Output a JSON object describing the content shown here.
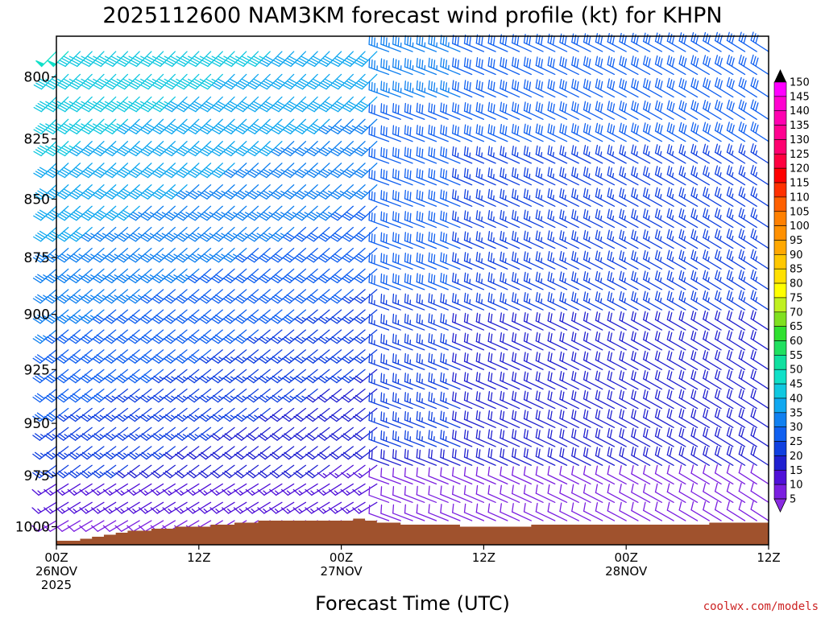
{
  "chart_data": {
    "type": "wind-barb-time-height",
    "title": "2025112600 NAM3KM forecast wind profile (kt) for KHPN",
    "xlabel": "Forecast Time (UTC)",
    "credit": "coolwx.com/models",
    "x_ticks": [
      {
        "hour": 0,
        "lines": [
          "00Z",
          "26NOV",
          "2025"
        ]
      },
      {
        "hour": 12,
        "lines": [
          "12Z"
        ]
      },
      {
        "hour": 24,
        "lines": [
          "00Z",
          "27NOV"
        ]
      },
      {
        "hour": 36,
        "lines": [
          "12Z"
        ]
      },
      {
        "hour": 48,
        "lines": [
          "00Z",
          "28NOV"
        ]
      },
      {
        "hour": 60,
        "lines": [
          "12Z"
        ]
      }
    ],
    "xlim": [
      0,
      60
    ],
    "y_ticks": [
      800,
      825,
      850,
      875,
      900,
      925,
      950,
      975,
      1000
    ],
    "ylim_hpa": [
      1009,
      784
    ],
    "colorbar": {
      "ticks": [
        5,
        10,
        15,
        20,
        25,
        30,
        35,
        40,
        45,
        50,
        55,
        60,
        65,
        70,
        75,
        80,
        85,
        90,
        95,
        100,
        105,
        110,
        115,
        120,
        125,
        130,
        135,
        140,
        145,
        150
      ],
      "colors": [
        "#8a2be2",
        "#7b1fe0",
        "#5010d8",
        "#2020d0",
        "#1040e0",
        "#1060f0",
        "#1080f0",
        "#10a8f0",
        "#10c8e0",
        "#10e0c8",
        "#10e0a0",
        "#20e060",
        "#30e030",
        "#80e020",
        "#c0f020",
        "#ffff00",
        "#ffe000",
        "#ffc800",
        "#ffa800",
        "#ff9000",
        "#ff8000",
        "#ff6000",
        "#ff3000",
        "#ff0000",
        "#ff0040",
        "#ff0070",
        "#ff0090",
        "#ff00b0",
        "#ff00d0",
        "#ff00ff"
      ]
    },
    "terrain_color": "#a0522d",
    "surface_pressure_hpa": [
      1007,
      1007,
      1006,
      1005,
      1004,
      1003,
      1002,
      1002,
      1001,
      1001,
      1000,
      1000,
      1000,
      999,
      999,
      998,
      998,
      997,
      997,
      997,
      997,
      997,
      997,
      997,
      997,
      996,
      997,
      998,
      998,
      999,
      999,
      999,
      999,
      999,
      1000,
      1000,
      1000,
      1000,
      1000,
      1000,
      999,
      999,
      999,
      999,
      999,
      999,
      999,
      999,
      999,
      999,
      999,
      999,
      999,
      999,
      999,
      998,
      998,
      998,
      998,
      998,
      998
    ],
    "wind_profile": {
      "note": "Wind barbs at 1-hourly forecast times and ~25 pressure levels; speeds 5-55 kt, SW-W flow first ~28h backing/veering to NW flow afterwards.",
      "phase1_hours": [
        0,
        28
      ],
      "phase1_direction_deg": 225,
      "phase1_speed_aloft_kt": 48,
      "phase2_hours": [
        28,
        60
      ],
      "phase2_direction_deg": 290,
      "phase2_speed_aloft_kt": 32,
      "surface_speed_kt": 10
    }
  }
}
